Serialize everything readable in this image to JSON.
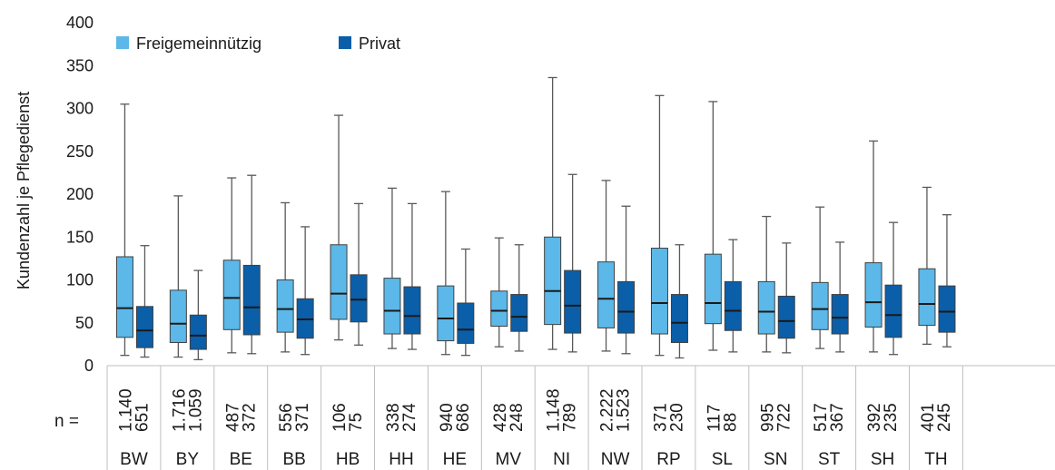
{
  "chart_data": {
    "type": "boxplot",
    "ylabel": "Kundenzahl je Pflegedienst",
    "ylim": [
      0,
      400
    ],
    "yticks": [
      0,
      50,
      100,
      150,
      200,
      250,
      300,
      350,
      400
    ],
    "legend_position": "top-left",
    "n_label": "n =",
    "grid": false,
    "categories": [
      "BW",
      "BY",
      "BE",
      "BB",
      "HB",
      "HH",
      "HE",
      "MV",
      "NI",
      "NW",
      "RP",
      "SL",
      "SN",
      "ST",
      "SH",
      "TH"
    ],
    "series": [
      {
        "name": "Freigemeinnützig",
        "color": "#5BB8E8",
        "n": [
          "1.140",
          "1.716",
          "487",
          "556",
          "106",
          "338",
          "940",
          "428",
          "1.148",
          "2.222",
          "371",
          "117",
          "995",
          "517",
          "392",
          "401"
        ],
        "boxes": [
          {
            "min": 12,
            "q1": 33,
            "median": 67,
            "q3": 127,
            "max": 305
          },
          {
            "min": 10,
            "q1": 27,
            "median": 49,
            "q3": 88,
            "max": 198
          },
          {
            "min": 15,
            "q1": 42,
            "median": 79,
            "q3": 123,
            "max": 219
          },
          {
            "min": 16,
            "q1": 39,
            "median": 66,
            "q3": 100,
            "max": 190
          },
          {
            "min": 30,
            "q1": 54,
            "median": 84,
            "q3": 141,
            "max": 292
          },
          {
            "min": 20,
            "q1": 37,
            "median": 64,
            "q3": 102,
            "max": 207
          },
          {
            "min": 13,
            "q1": 29,
            "median": 55,
            "q3": 93,
            "max": 203
          },
          {
            "min": 22,
            "q1": 46,
            "median": 64,
            "q3": 87,
            "max": 149
          },
          {
            "min": 19,
            "q1": 48,
            "median": 87,
            "q3": 150,
            "max": 336
          },
          {
            "min": 17,
            "q1": 44,
            "median": 78,
            "q3": 121,
            "max": 216
          },
          {
            "min": 12,
            "q1": 37,
            "median": 73,
            "q3": 137,
            "max": 315
          },
          {
            "min": 18,
            "q1": 49,
            "median": 73,
            "q3": 130,
            "max": 308
          },
          {
            "min": 16,
            "q1": 37,
            "median": 63,
            "q3": 98,
            "max": 174
          },
          {
            "min": 20,
            "q1": 42,
            "median": 66,
            "q3": 97,
            "max": 185
          },
          {
            "min": 16,
            "q1": 45,
            "median": 74,
            "q3": 120,
            "max": 262
          },
          {
            "min": 25,
            "q1": 47,
            "median": 72,
            "q3": 113,
            "max": 208
          }
        ]
      },
      {
        "name": "Privat",
        "color": "#0B5EA8",
        "n": [
          "651",
          "1.059",
          "372",
          "371",
          "75",
          "274",
          "686",
          "248",
          "789",
          "1.523",
          "230",
          "88",
          "722",
          "367",
          "235",
          "245"
        ],
        "boxes": [
          {
            "min": 10,
            "q1": 21,
            "median": 41,
            "q3": 69,
            "max": 140
          },
          {
            "min": 7,
            "q1": 19,
            "median": 35,
            "q3": 59,
            "max": 111
          },
          {
            "min": 14,
            "q1": 36,
            "median": 68,
            "q3": 117,
            "max": 222
          },
          {
            "min": 13,
            "q1": 32,
            "median": 54,
            "q3": 78,
            "max": 162
          },
          {
            "min": 24,
            "q1": 51,
            "median": 77,
            "q3": 106,
            "max": 189
          },
          {
            "min": 19,
            "q1": 37,
            "median": 58,
            "q3": 92,
            "max": 189
          },
          {
            "min": 12,
            "q1": 26,
            "median": 42,
            "q3": 73,
            "max": 136
          },
          {
            "min": 17,
            "q1": 40,
            "median": 57,
            "q3": 83,
            "max": 141
          },
          {
            "min": 16,
            "q1": 38,
            "median": 70,
            "q3": 111,
            "max": 223
          },
          {
            "min": 14,
            "q1": 38,
            "median": 63,
            "q3": 98,
            "max": 186
          },
          {
            "min": 9,
            "q1": 27,
            "median": 50,
            "q3": 83,
            "max": 141
          },
          {
            "min": 16,
            "q1": 41,
            "median": 64,
            "q3": 98,
            "max": 147
          },
          {
            "min": 15,
            "q1": 32,
            "median": 52,
            "q3": 81,
            "max": 143
          },
          {
            "min": 16,
            "q1": 37,
            "median": 56,
            "q3": 83,
            "max": 144
          },
          {
            "min": 13,
            "q1": 33,
            "median": 59,
            "q3": 94,
            "max": 167
          },
          {
            "min": 22,
            "q1": 39,
            "median": 63,
            "q3": 93,
            "max": 176
          }
        ]
      }
    ]
  }
}
